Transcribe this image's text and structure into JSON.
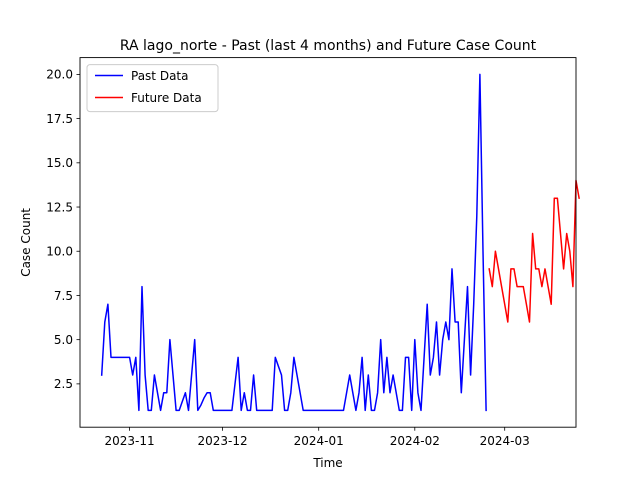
{
  "chart_data": {
    "type": "line",
    "title": "RA lago_norte - Past (last 4 months) and Future Case Count",
    "xlabel": "Time",
    "ylabel": "Case Count",
    "xlim": [
      "2023-10-16",
      "2024-03-24"
    ],
    "ylim": [
      0.05,
      20.95
    ],
    "x_ticks": [
      {
        "date": "2023-11-01",
        "label": "2023-11"
      },
      {
        "date": "2023-12-01",
        "label": "2023-12"
      },
      {
        "date": "2024-01-01",
        "label": "2024-01"
      },
      {
        "date": "2024-02-01",
        "label": "2024-02"
      },
      {
        "date": "2024-03-01",
        "label": "2024-03"
      }
    ],
    "y_ticks": [
      2.5,
      5.0,
      7.5,
      10.0,
      12.5,
      15.0,
      17.5,
      20.0
    ],
    "y_tick_labels": [
      "2.5",
      "5.0",
      "7.5",
      "10.0",
      "12.5",
      "15.0",
      "17.5",
      "20.0"
    ],
    "grid": false,
    "legend_position": "upper left",
    "series": [
      {
        "name": "Past Data",
        "color": "#0000ff",
        "points": [
          [
            "2023-10-23",
            3
          ],
          [
            "2023-10-24",
            6
          ],
          [
            "2023-10-25",
            7
          ],
          [
            "2023-10-26",
            4
          ],
          [
            "2023-10-27",
            4
          ],
          [
            "2023-10-28",
            4
          ],
          [
            "2023-10-29",
            4
          ],
          [
            "2023-10-30",
            4
          ],
          [
            "2023-10-31",
            4
          ],
          [
            "2023-11-01",
            4
          ],
          [
            "2023-11-02",
            3
          ],
          [
            "2023-11-03",
            4
          ],
          [
            "2023-11-04",
            1
          ],
          [
            "2023-11-05",
            8
          ],
          [
            "2023-11-06",
            3
          ],
          [
            "2023-11-07",
            1
          ],
          [
            "2023-11-08",
            1
          ],
          [
            "2023-11-09",
            3
          ],
          [
            "2023-11-10",
            2
          ],
          [
            "2023-11-11",
            1
          ],
          [
            "2023-11-12",
            2
          ],
          [
            "2023-11-13",
            2
          ],
          [
            "2023-11-14",
            5
          ],
          [
            "2023-11-15",
            3
          ],
          [
            "2023-11-16",
            1
          ],
          [
            "2023-11-17",
            1
          ],
          [
            "2023-11-18",
            1.5
          ],
          [
            "2023-11-19",
            2
          ],
          [
            "2023-11-20",
            1
          ],
          [
            "2023-11-21",
            3
          ],
          [
            "2023-11-22",
            5
          ],
          [
            "2023-11-23",
            1
          ],
          [
            "2023-11-24",
            1.3
          ],
          [
            "2023-11-25",
            1.7
          ],
          [
            "2023-11-26",
            2
          ],
          [
            "2023-11-27",
            2
          ],
          [
            "2023-11-28",
            1
          ],
          [
            "2023-11-29",
            1
          ],
          [
            "2023-11-30",
            1
          ],
          [
            "2023-12-01",
            1
          ],
          [
            "2023-12-02",
            1
          ],
          [
            "2023-12-03",
            1
          ],
          [
            "2023-12-04",
            1
          ],
          [
            "2023-12-05",
            2.5
          ],
          [
            "2023-12-06",
            4
          ],
          [
            "2023-12-07",
            1
          ],
          [
            "2023-12-08",
            2
          ],
          [
            "2023-12-09",
            1
          ],
          [
            "2023-12-10",
            1
          ],
          [
            "2023-12-11",
            3
          ],
          [
            "2023-12-12",
            1
          ],
          [
            "2023-12-13",
            1
          ],
          [
            "2023-12-14",
            1
          ],
          [
            "2023-12-15",
            1
          ],
          [
            "2023-12-16",
            1
          ],
          [
            "2023-12-17",
            1
          ],
          [
            "2023-12-18",
            4
          ],
          [
            "2023-12-19",
            3.5
          ],
          [
            "2023-12-20",
            3
          ],
          [
            "2023-12-21",
            1
          ],
          [
            "2023-12-22",
            1
          ],
          [
            "2023-12-23",
            2
          ],
          [
            "2023-12-24",
            4
          ],
          [
            "2023-12-25",
            3
          ],
          [
            "2023-12-26",
            2
          ],
          [
            "2023-12-27",
            1
          ],
          [
            "2023-12-28",
            1
          ],
          [
            "2023-12-29",
            1
          ],
          [
            "2023-12-30",
            1
          ],
          [
            "2023-12-31",
            1
          ],
          [
            "2024-01-01",
            1
          ],
          [
            "2024-01-02",
            1
          ],
          [
            "2024-01-03",
            1
          ],
          [
            "2024-01-04",
            1
          ],
          [
            "2024-01-05",
            1
          ],
          [
            "2024-01-06",
            1
          ],
          [
            "2024-01-07",
            1
          ],
          [
            "2024-01-08",
            1
          ],
          [
            "2024-01-09",
            1
          ],
          [
            "2024-01-10",
            2
          ],
          [
            "2024-01-11",
            3
          ],
          [
            "2024-01-12",
            2
          ],
          [
            "2024-01-13",
            1
          ],
          [
            "2024-01-14",
            2
          ],
          [
            "2024-01-15",
            4
          ],
          [
            "2024-01-16",
            1
          ],
          [
            "2024-01-17",
            3
          ],
          [
            "2024-01-18",
            1
          ],
          [
            "2024-01-19",
            1
          ],
          [
            "2024-01-20",
            2
          ],
          [
            "2024-01-21",
            5
          ],
          [
            "2024-01-22",
            2
          ],
          [
            "2024-01-23",
            4
          ],
          [
            "2024-01-24",
            2
          ],
          [
            "2024-01-25",
            3
          ],
          [
            "2024-01-26",
            2
          ],
          [
            "2024-01-27",
            1
          ],
          [
            "2024-01-28",
            1
          ],
          [
            "2024-01-29",
            4
          ],
          [
            "2024-01-30",
            4
          ],
          [
            "2024-01-31",
            1
          ],
          [
            "2024-02-01",
            5
          ],
          [
            "2024-02-02",
            2
          ],
          [
            "2024-02-03",
            1
          ],
          [
            "2024-02-04",
            4
          ],
          [
            "2024-02-05",
            7
          ],
          [
            "2024-02-06",
            3
          ],
          [
            "2024-02-07",
            4
          ],
          [
            "2024-02-08",
            6
          ],
          [
            "2024-02-09",
            3
          ],
          [
            "2024-02-10",
            5
          ],
          [
            "2024-02-11",
            6
          ],
          [
            "2024-02-12",
            5
          ],
          [
            "2024-02-13",
            9
          ],
          [
            "2024-02-14",
            6
          ],
          [
            "2024-02-15",
            6
          ],
          [
            "2024-02-16",
            2
          ],
          [
            "2024-02-17",
            5
          ],
          [
            "2024-02-18",
            8
          ],
          [
            "2024-02-19",
            3
          ],
          [
            "2024-02-20",
            7
          ],
          [
            "2024-02-21",
            12
          ],
          [
            "2024-02-22",
            20
          ],
          [
            "2024-02-23",
            10
          ],
          [
            "2024-02-24",
            1
          ]
        ]
      },
      {
        "name": "Future Data",
        "color": "#ff0000",
        "points": [
          [
            "2024-02-25",
            9
          ],
          [
            "2024-02-26",
            8
          ],
          [
            "2024-02-27",
            10
          ],
          [
            "2024-02-28",
            9
          ],
          [
            "2024-02-29",
            8
          ],
          [
            "2024-03-01",
            7
          ],
          [
            "2024-03-02",
            6
          ],
          [
            "2024-03-03",
            9
          ],
          [
            "2024-03-04",
            9
          ],
          [
            "2024-03-05",
            8
          ],
          [
            "2024-03-06",
            8
          ],
          [
            "2024-03-07",
            8
          ],
          [
            "2024-03-08",
            7
          ],
          [
            "2024-03-09",
            6
          ],
          [
            "2024-03-10",
            11
          ],
          [
            "2024-03-11",
            9
          ],
          [
            "2024-03-12",
            9
          ],
          [
            "2024-03-13",
            8
          ],
          [
            "2024-03-14",
            9
          ],
          [
            "2024-03-15",
            8
          ],
          [
            "2024-03-16",
            7
          ],
          [
            "2024-03-17",
            13
          ],
          [
            "2024-03-18",
            13
          ],
          [
            "2024-03-19",
            11
          ],
          [
            "2024-03-20",
            9
          ],
          [
            "2024-03-21",
            11
          ],
          [
            "2024-03-22",
            10
          ],
          [
            "2024-03-23",
            8
          ],
          [
            "2024-03-24",
            14
          ],
          [
            "2024-03-25",
            13
          ]
        ]
      }
    ]
  }
}
